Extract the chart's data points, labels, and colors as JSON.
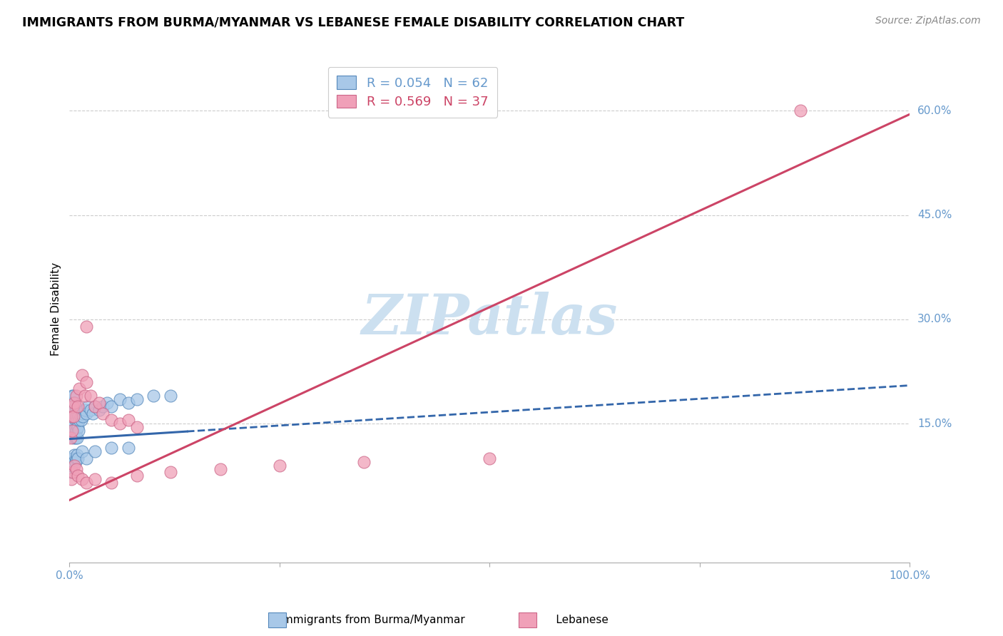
{
  "title": "IMMIGRANTS FROM BURMA/MYANMAR VS LEBANESE FEMALE DISABILITY CORRELATION CHART",
  "source": "Source: ZipAtlas.com",
  "ylabel": "Female Disability",
  "xlim": [
    0.0,
    1.0
  ],
  "ylim": [
    -0.05,
    0.68
  ],
  "ytick_vals": [
    0.15,
    0.3,
    0.45,
    0.6
  ],
  "ytick_labels": [
    "15.0%",
    "30.0%",
    "45.0%",
    "60.0%"
  ],
  "xtick_vals": [
    0.0,
    0.25,
    0.5,
    0.75,
    1.0
  ],
  "xtick_labels": [
    "0.0%",
    "",
    "",
    "",
    "100.0%"
  ],
  "legend_R_blue": "0.054",
  "legend_N_blue": "62",
  "legend_R_pink": "0.569",
  "legend_N_pink": "37",
  "blue_face_color": "#a8c8e8",
  "blue_edge_color": "#5588bb",
  "pink_face_color": "#f0a0b8",
  "pink_edge_color": "#cc6688",
  "blue_line_color": "#3366aa",
  "pink_line_color": "#cc4466",
  "grid_color": "#cccccc",
  "background_color": "#ffffff",
  "watermark": "ZIPatlas",
  "watermark_color": "#cce0f0",
  "tick_color": "#6699cc",
  "blue_scatter_x": [
    0.001,
    0.002,
    0.002,
    0.003,
    0.003,
    0.003,
    0.004,
    0.004,
    0.004,
    0.005,
    0.005,
    0.005,
    0.005,
    0.006,
    0.006,
    0.006,
    0.007,
    0.007,
    0.007,
    0.008,
    0.008,
    0.009,
    0.009,
    0.01,
    0.01,
    0.011,
    0.011,
    0.012,
    0.013,
    0.014,
    0.015,
    0.016,
    0.018,
    0.02,
    0.022,
    0.025,
    0.028,
    0.03,
    0.035,
    0.04,
    0.045,
    0.05,
    0.06,
    0.07,
    0.08,
    0.1,
    0.12,
    0.001,
    0.002,
    0.003,
    0.004,
    0.005,
    0.006,
    0.007,
    0.008,
    0.009,
    0.01,
    0.015,
    0.02,
    0.03,
    0.05,
    0.07
  ],
  "blue_scatter_y": [
    0.14,
    0.16,
    0.18,
    0.15,
    0.17,
    0.19,
    0.14,
    0.16,
    0.18,
    0.13,
    0.15,
    0.17,
    0.19,
    0.14,
    0.16,
    0.18,
    0.13,
    0.155,
    0.175,
    0.14,
    0.16,
    0.13,
    0.155,
    0.145,
    0.165,
    0.14,
    0.16,
    0.155,
    0.16,
    0.155,
    0.165,
    0.16,
    0.17,
    0.165,
    0.175,
    0.17,
    0.165,
    0.175,
    0.17,
    0.175,
    0.18,
    0.175,
    0.185,
    0.18,
    0.185,
    0.19,
    0.19,
    0.08,
    0.09,
    0.1,
    0.1,
    0.095,
    0.105,
    0.095,
    0.1,
    0.105,
    0.1,
    0.11,
    0.1,
    0.11,
    0.115,
    0.115
  ],
  "pink_scatter_x": [
    0.001,
    0.002,
    0.003,
    0.004,
    0.005,
    0.006,
    0.008,
    0.01,
    0.012,
    0.015,
    0.018,
    0.02,
    0.025,
    0.03,
    0.035,
    0.04,
    0.05,
    0.06,
    0.07,
    0.08,
    0.002,
    0.004,
    0.006,
    0.008,
    0.01,
    0.015,
    0.02,
    0.03,
    0.05,
    0.08,
    0.12,
    0.18,
    0.25,
    0.35,
    0.5,
    0.87,
    0.02
  ],
  "pink_scatter_y": [
    0.13,
    0.16,
    0.14,
    0.175,
    0.16,
    0.18,
    0.19,
    0.175,
    0.2,
    0.22,
    0.19,
    0.21,
    0.19,
    0.175,
    0.18,
    0.165,
    0.155,
    0.15,
    0.155,
    0.145,
    0.07,
    0.08,
    0.09,
    0.085,
    0.075,
    0.07,
    0.065,
    0.07,
    0.065,
    0.075,
    0.08,
    0.085,
    0.09,
    0.095,
    0.1,
    0.6,
    0.29
  ],
  "blue_line_x0": 0.0,
  "blue_line_x_solid_end": 0.14,
  "blue_line_x1": 1.0,
  "blue_line_y0": 0.128,
  "blue_line_y1": 0.205,
  "pink_line_x0": 0.0,
  "pink_line_x1": 1.0,
  "pink_line_y0": 0.04,
  "pink_line_y1": 0.595
}
